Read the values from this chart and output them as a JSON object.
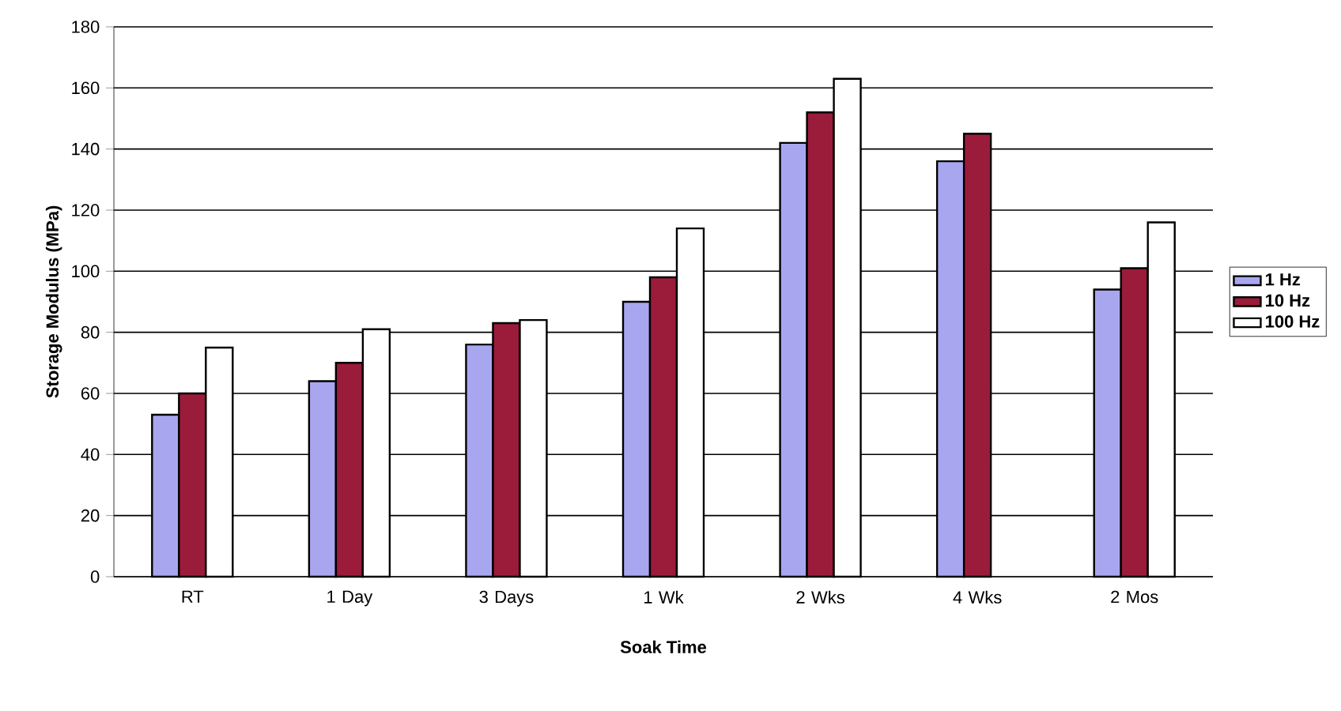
{
  "chart_data": {
    "type": "bar",
    "xlabel": "Soak Time",
    "ylabel": "Storage Modulus (MPa)",
    "categories": [
      "RT",
      "1 Day",
      "3 Days",
      "1 Wk",
      "2 Wks",
      "4 Wks",
      "2 Mos"
    ],
    "series": [
      {
        "name": "1 Hz",
        "color": "#a9a6f0",
        "values": [
          53,
          64,
          76,
          90,
          142,
          136,
          94
        ]
      },
      {
        "name": "10 Hz",
        "color": "#9b1b3a",
        "values": [
          60,
          70,
          83,
          98,
          152,
          145,
          101
        ]
      },
      {
        "name": "100 Hz",
        "color": "#ffffff",
        "values": [
          75,
          81,
          84,
          114,
          163,
          null,
          116
        ]
      }
    ],
    "ylim": [
      0,
      180
    ],
    "yticks": [
      0,
      20,
      40,
      60,
      80,
      100,
      120,
      140,
      160,
      180
    ],
    "grid": "y",
    "legend": "right"
  }
}
